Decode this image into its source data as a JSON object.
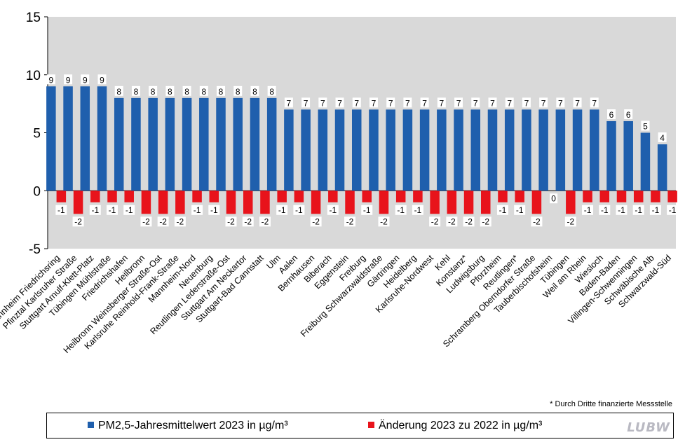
{
  "chart_data": {
    "type": "bar",
    "ylim": [
      -5,
      15
    ],
    "yticks": [
      "-5",
      "0",
      "5",
      "10",
      "15"
    ],
    "grid": false,
    "categories": [
      "Mannheim Friedrichsring",
      "Pfinztal Karlsruher Straße",
      "Stuttgart Arnulf-Klett-Platz",
      "Tübingen Mühlstraße",
      "Friedrichshafen",
      "Heilbronn",
      "Heilbronn Weinsberger Straße-Ost",
      "Karlsruhe Reinhold-Frank-Straße",
      "Mannheim-Nord",
      "Neuenburg",
      "Reutlingen Lederstraße-Ost",
      "Stuttgart Am Neckartor",
      "Stuttgart-Bad Cannstatt",
      "Ulm",
      "Aalen",
      "Bernhausen",
      "Biberach",
      "Eggenstein",
      "Freiburg",
      "Freiburg Schwarzwaldstraße",
      "Gärtringen",
      "Heidelberg",
      "Karlsruhe-Nordwest",
      "Kehl",
      "Konstanz*",
      "Ludwigsburg",
      "Pforzheim",
      "Reutlingen*",
      "Schramberg Oberndorfer Straße",
      "Tauberbischofsheim",
      "Tübingen",
      "Weil am Rhein",
      "Wiesloch",
      "Baden-Baden",
      "Villingen-Schwenningen",
      "Schwäbische Alb",
      "Schwarzwald-Süd"
    ],
    "series": [
      {
        "name": "PM2,5-Jahresmittelwert 2023 in µg/m³",
        "color": "#1f5fad",
        "values": [
          9,
          9,
          9,
          9,
          8,
          8,
          8,
          8,
          8,
          8,
          8,
          8,
          8,
          8,
          7,
          7,
          7,
          7,
          7,
          7,
          7,
          7,
          7,
          7,
          7,
          7,
          7,
          7,
          7,
          7,
          7,
          7,
          7,
          6,
          6,
          5,
          4
        ]
      },
      {
        "name": "Änderung 2023 zu 2022 in µg/m³",
        "color": "#e8131b",
        "values": [
          -1,
          -2,
          -1,
          -1,
          -1,
          -2,
          -2,
          -2,
          -1,
          -1,
          -2,
          -2,
          -2,
          -1,
          -1,
          -2,
          -1,
          -2,
          -1,
          -2,
          -1,
          -1,
          -2,
          -2,
          -2,
          -2,
          -1,
          -1,
          -2,
          0,
          -2,
          -1,
          -1,
          -1,
          -1,
          -1,
          -1
        ]
      }
    ]
  },
  "footnote": "* Durch Dritte finanzierte Messstelle",
  "legend": {
    "items": [
      {
        "label": "PM2,5-Jahresmittelwert 2023 in µg/m³",
        "color": "#1f5fad"
      },
      {
        "label": "Änderung 2023 zu 2022 in µg/m³",
        "color": "#e8131b"
      }
    ]
  },
  "logo_text": "LUBW"
}
